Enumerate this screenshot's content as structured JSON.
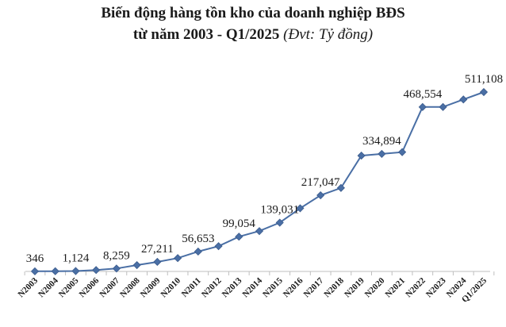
{
  "chart_data": {
    "type": "line",
    "title": "Biến động hàng tồn kho của doanh nghiệp BĐS",
    "subtitle": "từ năm 2003 - Q1/2025",
    "unit": "(Đvt: Tỷ đồng)",
    "categories": [
      "N2003",
      "N2004",
      "N2005",
      "N2006",
      "N2007",
      "N2008",
      "N2009",
      "N2010",
      "N2011",
      "N2012",
      "N2013",
      "N2014",
      "N2015",
      "N2016",
      "N2017",
      "N2018",
      "N2019",
      "N2020",
      "N2021",
      "N2022",
      "N2023",
      "N2024",
      "Q1/2025"
    ],
    "values": [
      346,
      600,
      1124,
      4000,
      8259,
      18000,
      27211,
      38000,
      56653,
      72000,
      99054,
      115000,
      139031,
      180000,
      217047,
      238000,
      330000,
      334894,
      340000,
      468554,
      468500,
      490000,
      511108
    ],
    "data_labels": [
      {
        "index": 0,
        "text": "346"
      },
      {
        "index": 2,
        "text": "1,124"
      },
      {
        "index": 4,
        "text": "8,259"
      },
      {
        "index": 6,
        "text": "27,211"
      },
      {
        "index": 8,
        "text": "56,653"
      },
      {
        "index": 10,
        "text": "99,054"
      },
      {
        "index": 12,
        "text": "139,031"
      },
      {
        "index": 14,
        "text": "217,047"
      },
      {
        "index": 17,
        "text": "334,894"
      },
      {
        "index": 19,
        "text": "468,554"
      },
      {
        "index": 22,
        "text": "511,108"
      }
    ],
    "ylim": [
      0,
      511108
    ],
    "grid": false,
    "legend": "none",
    "line_color": "#4a6fa5",
    "marker_color": "#4a6fa5"
  }
}
